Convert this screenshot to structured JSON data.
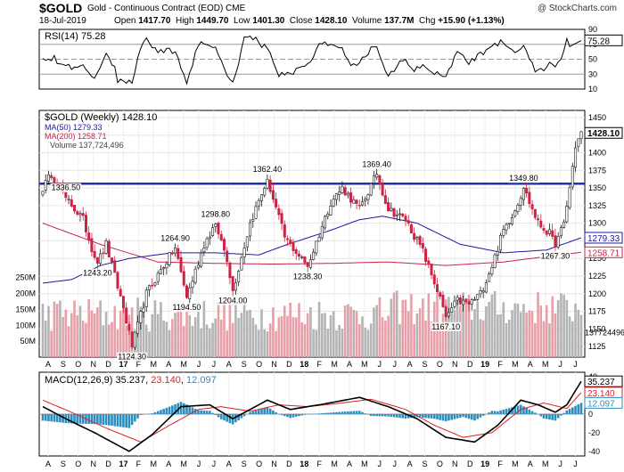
{
  "header": {
    "symbol": "$GOLD",
    "name": "Gold - Continuous Contract (EOD)  CME",
    "copyright": "@ StockCharts.com",
    "date": "18-Jul-2019",
    "open_label": "Open",
    "open": "1417.70",
    "high_label": "High",
    "high": "1449.70",
    "low_label": "Low",
    "low": "1401.30",
    "close_label": "Close",
    "close": "1428.10",
    "volume_label": "Volume",
    "volume": "137.7M",
    "chg_label": "Chg",
    "chg": "+15.90 (+1.13%)"
  },
  "colors": {
    "up": "#1a1a1a",
    "down": "#cc2244",
    "ma50": "#1a1aa0",
    "ma200": "#cc2244",
    "resistance": "#2233aa",
    "vol_up": "#b4b4b4",
    "vol_down": "#e8a0a8",
    "hist": "#2a8ec0",
    "macd": "#000000",
    "signal": "#dd2222"
  },
  "chart_data": [
    {
      "type": "line",
      "panel": "rsi",
      "title": "RSI(14) 75.28",
      "series": [
        {
          "name": "RSI(14)",
          "last": 75.28
        }
      ],
      "y_ticks": [
        90,
        70,
        50,
        30,
        10
      ],
      "ylim": [
        10,
        90
      ],
      "reference_lines": [
        70,
        50,
        30
      ],
      "last_value_label": "75.28"
    },
    {
      "type": "candlestick",
      "panel": "price",
      "title": "$GOLD (Weekly) 1428.10",
      "legend": [
        {
          "name": "MA(50) 1279.33",
          "color": "#1a1aa0"
        },
        {
          "name": "MA(200) 1258.71",
          "color": "#cc2244"
        },
        {
          "name": "Volume 137,724,496",
          "color": "#888888"
        }
      ],
      "x_labels": [
        "A",
        "S",
        "O",
        "N",
        "D",
        "17",
        "F",
        "M",
        "A",
        "M",
        "J",
        "J",
        "A",
        "S",
        "O",
        "N",
        "D",
        "18",
        "F",
        "M",
        "A",
        "M",
        "J",
        "J",
        "A",
        "S",
        "O",
        "N",
        "D",
        "19",
        "F",
        "M",
        "A",
        "M",
        "J",
        "J"
      ],
      "y_ticks": [
        1125,
        1150,
        1175,
        1200,
        1225,
        1250,
        1275,
        1300,
        1325,
        1350,
        1375,
        1400,
        1425,
        1450
      ],
      "ylim": [
        1110,
        1460
      ],
      "key_points": [
        {
          "week": 0,
          "close": 1350
        },
        {
          "week": 3,
          "close": 1370
        },
        {
          "week": 8,
          "close": 1336.5,
          "label": "1336.50"
        },
        {
          "week": 14,
          "close": 1305
        },
        {
          "week": 17,
          "close": 1265
        },
        {
          "week": 19,
          "close": 1243.2,
          "label": "1243.20"
        },
        {
          "week": 22,
          "close": 1270
        },
        {
          "week": 28,
          "close": 1180
        },
        {
          "week": 31,
          "close": 1124.3,
          "label": "1124.30"
        },
        {
          "week": 36,
          "close": 1200
        },
        {
          "week": 42,
          "close": 1240
        },
        {
          "week": 46,
          "close": 1264.9,
          "label": "1264.90"
        },
        {
          "week": 50,
          "close": 1194.5,
          "label": "1194.50"
        },
        {
          "week": 56,
          "close": 1270
        },
        {
          "week": 60,
          "close": 1298.8,
          "label": "1298.80"
        },
        {
          "week": 64,
          "close": 1250
        },
        {
          "week": 66,
          "close": 1204.0,
          "label": "1204.00"
        },
        {
          "week": 72,
          "close": 1300
        },
        {
          "week": 78,
          "close": 1362.4,
          "label": "1362.40"
        },
        {
          "week": 84,
          "close": 1280
        },
        {
          "week": 92,
          "close": 1238.3,
          "label": "1238.30"
        },
        {
          "week": 100,
          "close": 1330
        },
        {
          "week": 104,
          "close": 1350
        },
        {
          "week": 110,
          "close": 1320
        },
        {
          "week": 116,
          "close": 1369.4,
          "label": "1369.40"
        },
        {
          "week": 120,
          "close": 1320
        },
        {
          "week": 126,
          "close": 1305
        },
        {
          "week": 132,
          "close": 1260
        },
        {
          "week": 137,
          "close": 1205
        },
        {
          "week": 140,
          "close": 1167.1,
          "label": "1167.10"
        },
        {
          "week": 144,
          "close": 1190
        },
        {
          "week": 148,
          "close": 1185
        },
        {
          "week": 152,
          "close": 1200
        },
        {
          "week": 156,
          "close": 1240
        },
        {
          "week": 160,
          "close": 1290
        },
        {
          "week": 164,
          "close": 1320
        },
        {
          "week": 167,
          "close": 1349.8,
          "label": "1349.80"
        },
        {
          "week": 172,
          "close": 1300
        },
        {
          "week": 176,
          "close": 1285
        },
        {
          "week": 178,
          "close": 1267.3,
          "label": "1267.30"
        },
        {
          "week": 181,
          "close": 1300
        },
        {
          "week": 183,
          "close": 1350
        },
        {
          "week": 185,
          "close": 1410
        },
        {
          "week": 187,
          "close": 1428.1
        }
      ],
      "ma50_points": [
        {
          "week": 0,
          "value": 1215
        },
        {
          "week": 10,
          "value": 1220
        },
        {
          "week": 20,
          "value": 1240
        },
        {
          "week": 30,
          "value": 1250
        },
        {
          "week": 45,
          "value": 1258
        },
        {
          "week": 60,
          "value": 1258
        },
        {
          "week": 75,
          "value": 1255
        },
        {
          "week": 85,
          "value": 1270
        },
        {
          "week": 100,
          "value": 1290
        },
        {
          "week": 110,
          "value": 1305
        },
        {
          "week": 118,
          "value": 1310
        },
        {
          "week": 130,
          "value": 1300
        },
        {
          "week": 145,
          "value": 1270
        },
        {
          "week": 160,
          "value": 1258
        },
        {
          "week": 175,
          "value": 1262
        },
        {
          "week": 187,
          "value": 1279.33
        }
      ],
      "ma200_points": [
        {
          "week": 0,
          "value": 1300
        },
        {
          "week": 20,
          "value": 1270
        },
        {
          "week": 40,
          "value": 1245
        },
        {
          "week": 60,
          "value": 1243
        },
        {
          "week": 80,
          "value": 1242
        },
        {
          "week": 100,
          "value": 1243
        },
        {
          "week": 120,
          "value": 1245
        },
        {
          "week": 140,
          "value": 1240
        },
        {
          "week": 160,
          "value": 1245
        },
        {
          "week": 187,
          "value": 1258.71
        }
      ],
      "resistance_level": 1356,
      "last_price_label": "1428.10",
      "ma50_label": "1279.33",
      "ma200_label": "1258.71"
    },
    {
      "type": "bar",
      "panel": "volume",
      "y_ticks_labels": [
        "250M",
        "200M",
        "150M",
        "100M",
        "50M"
      ],
      "y_ticks_values": [
        250,
        200,
        150,
        100,
        50
      ],
      "ylim": [
        0,
        280
      ],
      "last_value_label": "137724496"
    },
    {
      "type": "line",
      "panel": "macd",
      "title": "MACD(12,26,9) 35.237, 23.140, 12.097",
      "series": [
        {
          "name": "MACD(12,26,9)",
          "last": 35.237
        },
        {
          "name": "signal",
          "last": 23.14
        },
        {
          "name": "histogram",
          "last": 12.097
        }
      ],
      "y_ticks": [
        40,
        20,
        0,
        -20,
        -40
      ],
      "ylim": [
        -45,
        45
      ],
      "x_labels": [
        "A",
        "S",
        "O",
        "N",
        "D",
        "17",
        "F",
        "M",
        "A",
        "M",
        "J",
        "J",
        "A",
        "S",
        "O",
        "N",
        "D",
        "18",
        "F",
        "M",
        "A",
        "M",
        "J",
        "J",
        "A",
        "S",
        "O",
        "N",
        "D",
        "19",
        "F",
        "M",
        "A",
        "M",
        "J",
        "J"
      ],
      "label_macd": "35.237",
      "label_signal": "23.140",
      "label_hist": "12.097"
    }
  ]
}
